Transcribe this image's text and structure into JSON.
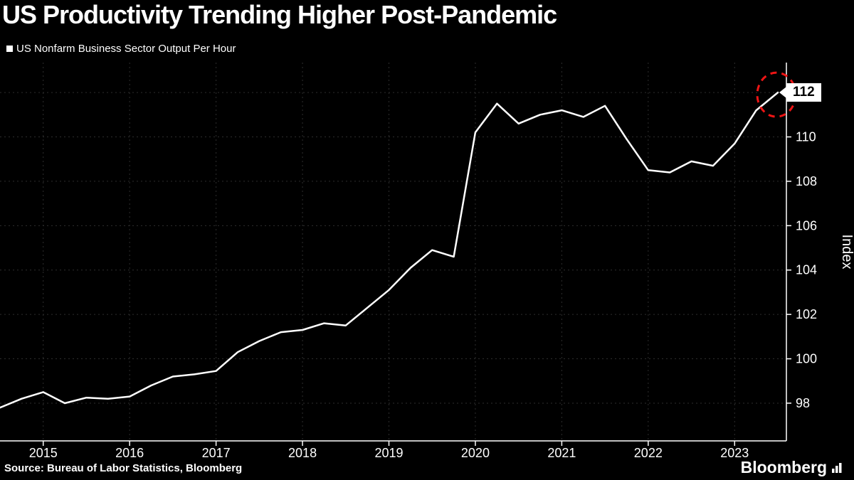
{
  "header": {
    "title": "US Productivity Trending Higher Post-Pandemic"
  },
  "legend": {
    "label": "US Nonfarm Business Sector Output Per Hour"
  },
  "annotation": {
    "last_value_label": "112"
  },
  "footer": {
    "source": "Source: Bureau of Labor Statistics, Bloomberg",
    "brand": "Bloomberg"
  },
  "colors": {
    "background": "#000000",
    "line": "#ffffff",
    "axis": "#ffffff",
    "grid": "#2e2e2e",
    "highlight": "#ee1515",
    "badge_bg": "#ffffff",
    "badge_text": "#000000"
  },
  "chart_data": {
    "type": "line",
    "title": "US Productivity Trending Higher Post-Pandemic",
    "series_name": "US Nonfarm Business Sector Output Per Hour",
    "ylabel": "Index",
    "y_ticks": [
      98,
      100,
      102,
      104,
      106,
      108,
      110,
      112
    ],
    "ylim": [
      96.3,
      113.35
    ],
    "x_tick_labels": [
      "2015",
      "2016",
      "2017",
      "2018",
      "2019",
      "2020",
      "2021",
      "2022",
      "2023"
    ],
    "year_tick_indices": [
      2,
      6,
      10,
      14,
      18,
      22,
      26,
      30,
      34
    ],
    "points_per_year": 4,
    "values": [
      97.8,
      98.2,
      98.5,
      98.0,
      98.25,
      98.2,
      98.3,
      98.8,
      99.2,
      99.3,
      99.45,
      100.3,
      100.8,
      101.2,
      101.3,
      101.6,
      101.5,
      102.3,
      103.1,
      104.1,
      104.9,
      104.6,
      110.2,
      111.5,
      110.6,
      111.0,
      111.2,
      110.9,
      111.4,
      109.9,
      108.5,
      108.4,
      108.9,
      108.7,
      109.7,
      111.2,
      112.0
    ],
    "last_value": 112,
    "grid": "dotted",
    "legend_position": "top-left",
    "axis_side": "right"
  }
}
